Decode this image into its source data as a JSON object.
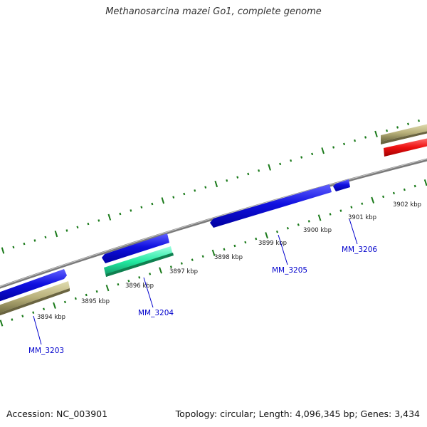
{
  "title": "Methanosarcina mazei Go1, complete genome",
  "footer": {
    "accession": "Accession: NC_003901",
    "summary": "Topology: circular; Length: 4,096,345 bp; Genes: 3,434"
  },
  "colors": {
    "background": "#ffffff",
    "backbone": "#888888",
    "tick": "#1a7a1a",
    "gene_blue": "#1010e0",
    "gene_teal": "#22e8a0",
    "gene_khaki": "#b8b07a",
    "gene_red": "#ee1010",
    "label": "#1a1a1a",
    "gene_label": "#0000cc"
  },
  "ruler_labels": [
    "3894 kbp",
    "3895 kbp",
    "3896 kbp",
    "3897 kbp",
    "3898 kbp",
    "3899 kbp",
    "3900 kbp",
    "3901 kbp",
    "3902 kbp"
  ],
  "genes": [
    {
      "id": "MM_3203",
      "kind": "cds",
      "strand": "forward",
      "color_key": "gene_blue"
    },
    {
      "id": "MM_3204",
      "kind": "cds",
      "strand": "reverse",
      "color_key": "gene_blue"
    },
    {
      "id": "MM_3205",
      "kind": "cds",
      "strand": "reverse",
      "color_key": "gene_blue"
    },
    {
      "id": "MM_3206",
      "kind": "cds",
      "strand": "reverse",
      "color_key": "gene_blue"
    }
  ],
  "features": [
    {
      "kind": "feature",
      "color_key": "gene_khaki"
    },
    {
      "kind": "feature",
      "color_key": "gene_teal"
    },
    {
      "kind": "feature",
      "color_key": "gene_khaki"
    },
    {
      "kind": "feature",
      "color_key": "gene_red"
    }
  ]
}
